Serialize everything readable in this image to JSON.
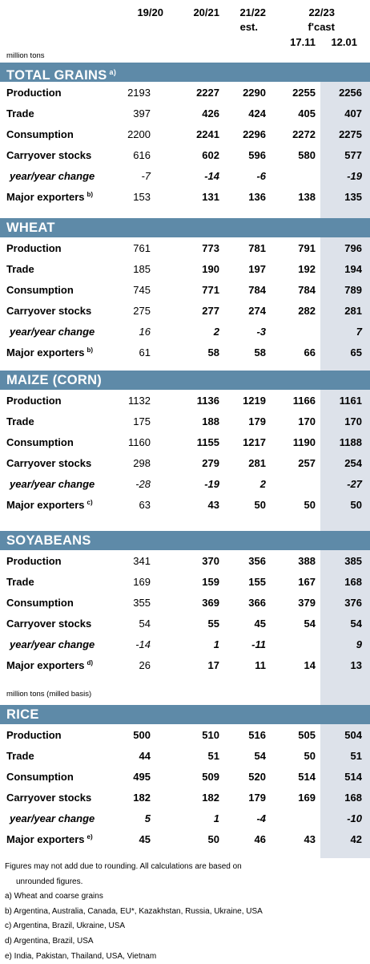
{
  "header": {
    "col1": "19/20",
    "col2": "20/21",
    "col3_line1": "21/22",
    "col3_line2": "est.",
    "col45_line1": "22/23",
    "col45_line2": "f'cast",
    "col4": "17.11",
    "col5": "12.01"
  },
  "unit_top": "million tons",
  "unit_rice": "million tons (milled basis)",
  "sections": [
    {
      "title": "TOTAL GRAINS",
      "title_note": "a)",
      "rows": [
        {
          "label": "Production",
          "note": "",
          "values": [
            "2193",
            "2227",
            "2290",
            "2255",
            "2256"
          ]
        },
        {
          "label": "Trade",
          "note": "",
          "values": [
            "397",
            "426",
            "424",
            "405",
            "407"
          ]
        },
        {
          "label": "Consumption",
          "note": "",
          "values": [
            "2200",
            "2241",
            "2296",
            "2272",
            "2275"
          ]
        },
        {
          "label": "Carryover stocks",
          "note": "",
          "values": [
            "616",
            "602",
            "596",
            "580",
            "577"
          ]
        },
        {
          "label": "year/year change",
          "note": "",
          "values": [
            "-7",
            "-14",
            "-6",
            "",
            "-19"
          ]
        },
        {
          "label": "Major exporters",
          "note": "b)",
          "values": [
            "153",
            "131",
            "136",
            "138",
            "135"
          ]
        }
      ]
    },
    {
      "title": "WHEAT",
      "title_note": "",
      "rows": [
        {
          "label": "Production",
          "note": "",
          "values": [
            "761",
            "773",
            "781",
            "791",
            "796"
          ]
        },
        {
          "label": "Trade",
          "note": "",
          "values": [
            "185",
            "190",
            "197",
            "192",
            "194"
          ]
        },
        {
          "label": "Consumption",
          "note": "",
          "values": [
            "745",
            "771",
            "784",
            "784",
            "789"
          ]
        },
        {
          "label": "Carryover stocks",
          "note": "",
          "values": [
            "275",
            "277",
            "274",
            "282",
            "281"
          ]
        },
        {
          "label": "year/year change",
          "note": "",
          "values": [
            "16",
            "2",
            "-3",
            "",
            "7"
          ]
        },
        {
          "label": "Major exporters",
          "note": "b)",
          "values": [
            "61",
            "58",
            "58",
            "66",
            "65"
          ]
        }
      ]
    },
    {
      "title": "MAIZE (CORN)",
      "title_note": "",
      "rows": [
        {
          "label": "Production",
          "note": "",
          "values": [
            "1132",
            "1136",
            "1219",
            "1166",
            "1161"
          ]
        },
        {
          "label": "Trade",
          "note": "",
          "values": [
            "175",
            "188",
            "179",
            "170",
            "170"
          ]
        },
        {
          "label": "Consumption",
          "note": "",
          "values": [
            "1160",
            "1155",
            "1217",
            "1190",
            "1188"
          ]
        },
        {
          "label": "Carryover stocks",
          "note": "",
          "values": [
            "298",
            "279",
            "281",
            "257",
            "254"
          ]
        },
        {
          "label": "year/year change",
          "note": "",
          "values": [
            "-28",
            "-19",
            "2",
            "",
            "-27"
          ]
        },
        {
          "label": "Major exporters",
          "note": "c)",
          "values": [
            "63",
            "43",
            "50",
            "50",
            "50"
          ]
        }
      ]
    },
    {
      "title": "SOYABEANS",
      "title_note": "",
      "rows": [
        {
          "label": "Production",
          "note": "",
          "values": [
            "341",
            "370",
            "356",
            "388",
            "385"
          ]
        },
        {
          "label": "Trade",
          "note": "",
          "values": [
            "169",
            "159",
            "155",
            "167",
            "168"
          ]
        },
        {
          "label": "Consumption",
          "note": "",
          "values": [
            "355",
            "369",
            "366",
            "379",
            "376"
          ]
        },
        {
          "label": "Carryover stocks",
          "note": "",
          "values": [
            "54",
            "55",
            "45",
            "54",
            "54"
          ]
        },
        {
          "label": "year/year change",
          "note": "",
          "values": [
            "-14",
            "1",
            "-11",
            "",
            "9"
          ]
        },
        {
          "label": "Major exporters",
          "note": "d)",
          "values": [
            "26",
            "17",
            "11",
            "14",
            "13"
          ]
        }
      ]
    },
    {
      "title": "RICE",
      "title_note": "",
      "rows": [
        {
          "label": "Production",
          "note": "",
          "values": [
            "500",
            "510",
            "516",
            "505",
            "504"
          ]
        },
        {
          "label": "Trade",
          "note": "",
          "values": [
            "44",
            "51",
            "54",
            "50",
            "51"
          ]
        },
        {
          "label": "Consumption",
          "note": "",
          "values": [
            "495",
            "509",
            "520",
            "514",
            "514"
          ]
        },
        {
          "label": "Carryover stocks",
          "note": "",
          "values": [
            "182",
            "182",
            "179",
            "169",
            "168"
          ]
        },
        {
          "label": "year/year change",
          "note": "",
          "values": [
            "5",
            "1",
            "-4",
            "",
            "-10"
          ]
        },
        {
          "label": "Major exporters",
          "note": "e)",
          "values": [
            "45",
            "50",
            "46",
            "43",
            "42"
          ]
        }
      ]
    }
  ],
  "footnotes": {
    "line1": "Figures may not add due to rounding. All calculations are based on",
    "line2": "unrounded figures.",
    "a": "a) Wheat and coarse grains",
    "b": "b) Argentina, Australia, Canada, EU*, Kazakhstan, Russia, Ukraine, USA",
    "c": "c) Argentina, Brazil, Ukraine, USA",
    "d": "d) Argentina, Brazil, USA",
    "e": "e) India, Pakistan, Thailand, USA, Vietnam"
  }
}
